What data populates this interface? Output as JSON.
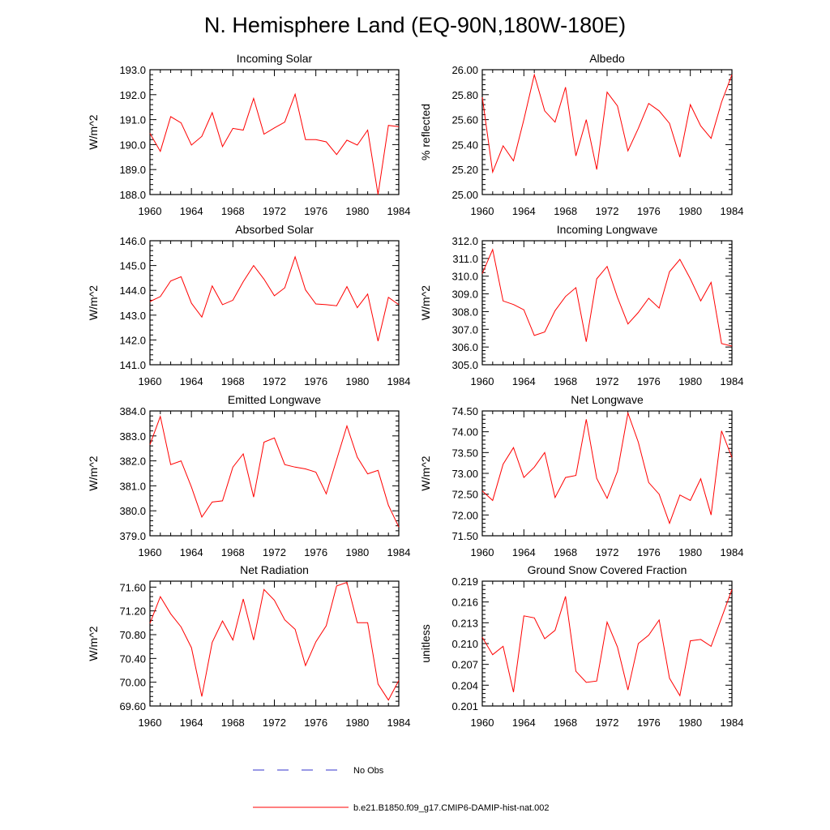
{
  "figure": {
    "title": "N. Hemisphere Land (EQ-90N,180W-180E)"
  },
  "legend": {
    "obs_label": "No Obs",
    "obs_color": "#3333cc",
    "model_label": "b.e21.B1850.f09_g17.CMIP6-DAMIP-hist-nat.002",
    "model_color": "#ff0000"
  },
  "chart_data": [
    {
      "type": "line",
      "title": "Incoming Solar",
      "ylabel": "W/m^2",
      "xlim": [
        1960,
        1984
      ],
      "ylim": [
        188.0,
        193.0
      ],
      "xticks": [
        "1960",
        "1964",
        "1968",
        "1972",
        "1976",
        "1980",
        "1984"
      ],
      "yticks": [
        "188.0",
        "189.0",
        "190.0",
        "191.0",
        "192.0",
        "193.0"
      ],
      "x": [
        1960,
        1961,
        1962,
        1963,
        1964,
        1965,
        1966,
        1967,
        1968,
        1969,
        1970,
        1971,
        1972,
        1973,
        1974,
        1975,
        1976,
        1977,
        1978,
        1979,
        1980,
        1981,
        1982,
        1983,
        1984
      ],
      "series": [
        {
          "name": "b.e21.B1850.f09_g17.CMIP6-DAMIP-hist-nat.002",
          "values": [
            190.45,
            189.73,
            191.12,
            190.87,
            189.98,
            190.33,
            191.28,
            189.92,
            190.65,
            190.58,
            191.85,
            190.42,
            190.67,
            190.9,
            192.02,
            190.2,
            190.2,
            190.11,
            189.6,
            190.18,
            189.98,
            190.58,
            188.0,
            190.77,
            190.72
          ]
        }
      ]
    },
    {
      "type": "line",
      "title": "Albedo",
      "ylabel": "% reflected",
      "xlim": [
        1960,
        1984
      ],
      "ylim": [
        25.0,
        26.0
      ],
      "xticks": [
        "1960",
        "1964",
        "1968",
        "1972",
        "1976",
        "1980",
        "1984"
      ],
      "yticks": [
        "25.00",
        "25.20",
        "25.40",
        "25.60",
        "25.80",
        "26.00"
      ],
      "x": [
        1960,
        1961,
        1962,
        1963,
        1964,
        1965,
        1966,
        1967,
        1968,
        1969,
        1970,
        1971,
        1972,
        1973,
        1974,
        1975,
        1976,
        1977,
        1978,
        1979,
        1980,
        1981,
        1982,
        1983,
        1984
      ],
      "series": [
        {
          "name": "b.e21.B1850.f09_g17.CMIP6-DAMIP-hist-nat.002",
          "values": [
            25.78,
            25.18,
            25.39,
            25.27,
            25.6,
            25.96,
            25.67,
            25.58,
            25.86,
            25.31,
            25.6,
            25.2,
            25.82,
            25.71,
            25.35,
            25.53,
            25.73,
            25.67,
            25.57,
            25.3,
            25.72,
            25.55,
            25.45,
            25.74,
            25.96
          ]
        }
      ]
    },
    {
      "type": "line",
      "title": "Absorbed Solar",
      "ylabel": "W/m^2",
      "xlim": [
        1960,
        1984
      ],
      "ylim": [
        141.0,
        146.0
      ],
      "xticks": [
        "1960",
        "1964",
        "1968",
        "1972",
        "1976",
        "1980",
        "1984"
      ],
      "yticks": [
        "141.0",
        "142.0",
        "143.0",
        "144.0",
        "145.0",
        "146.0"
      ],
      "x": [
        1960,
        1961,
        1962,
        1963,
        1964,
        1965,
        1966,
        1967,
        1968,
        1969,
        1970,
        1971,
        1972,
        1973,
        1974,
        1975,
        1976,
        1977,
        1978,
        1979,
        1980,
        1981,
        1982,
        1983,
        1984
      ],
      "series": [
        {
          "name": "b.e21.B1850.f09_g17.CMIP6-DAMIP-hist-nat.002",
          "values": [
            143.55,
            143.75,
            144.38,
            144.55,
            143.48,
            142.92,
            144.18,
            143.42,
            143.6,
            144.35,
            145.0,
            144.45,
            143.78,
            144.1,
            145.35,
            144.02,
            143.45,
            143.42,
            143.38,
            144.15,
            143.3,
            143.85,
            141.95,
            143.72,
            143.42
          ]
        }
      ]
    },
    {
      "type": "line",
      "title": "Incoming Longwave",
      "ylabel": "W/m^2",
      "xlim": [
        1960,
        1984
      ],
      "ylim": [
        305.0,
        312.0
      ],
      "xticks": [
        "1960",
        "1964",
        "1968",
        "1972",
        "1976",
        "1980",
        "1984"
      ],
      "yticks": [
        "305.0",
        "306.0",
        "307.0",
        "308.0",
        "309.0",
        "310.0",
        "311.0",
        "312.0"
      ],
      "x": [
        1960,
        1961,
        1962,
        1963,
        1964,
        1965,
        1966,
        1967,
        1968,
        1969,
        1970,
        1971,
        1972,
        1973,
        1974,
        1975,
        1976,
        1977,
        1978,
        1979,
        1980,
        1981,
        1982,
        1983,
        1984
      ],
      "series": [
        {
          "name": "b.e21.B1850.f09_g17.CMIP6-DAMIP-hist-nat.002",
          "values": [
            310.15,
            311.5,
            308.6,
            308.4,
            308.1,
            306.65,
            306.85,
            308.05,
            308.85,
            309.35,
            306.3,
            309.85,
            310.55,
            308.8,
            307.3,
            307.95,
            308.75,
            308.2,
            310.25,
            310.95,
            309.85,
            308.6,
            309.65,
            306.2,
            306.05
          ]
        }
      ]
    },
    {
      "type": "line",
      "title": "Emitted Longwave",
      "ylabel": "W/m^2",
      "xlim": [
        1960,
        1984
      ],
      "ylim": [
        379.0,
        384.0
      ],
      "xticks": [
        "1960",
        "1964",
        "1968",
        "1972",
        "1976",
        "1980",
        "1984"
      ],
      "yticks": [
        "379.0",
        "380.0",
        "381.0",
        "382.0",
        "383.0",
        "384.0"
      ],
      "x": [
        1960,
        1961,
        1962,
        1963,
        1964,
        1965,
        1966,
        1967,
        1968,
        1969,
        1970,
        1971,
        1972,
        1973,
        1974,
        1975,
        1976,
        1977,
        1978,
        1979,
        1980,
        1981,
        1982,
        1983,
        1984
      ],
      "series": [
        {
          "name": "b.e21.B1850.f09_g17.CMIP6-DAMIP-hist-nat.002",
          "values": [
            382.65,
            383.78,
            381.85,
            382.0,
            380.95,
            379.75,
            380.35,
            380.4,
            381.75,
            382.28,
            380.55,
            382.75,
            382.92,
            381.85,
            381.75,
            381.68,
            381.55,
            380.68,
            382.05,
            383.4,
            382.15,
            381.48,
            381.62,
            380.22,
            379.35
          ]
        }
      ]
    },
    {
      "type": "line",
      "title": "Net Longwave",
      "ylabel": "W/m^2",
      "xlim": [
        1960,
        1984
      ],
      "ylim": [
        71.5,
        74.5
      ],
      "xticks": [
        "1960",
        "1964",
        "1968",
        "1972",
        "1976",
        "1980",
        "1984"
      ],
      "yticks": [
        "71.50",
        "72.00",
        "72.50",
        "73.00",
        "73.50",
        "74.00",
        "74.50"
      ],
      "x": [
        1960,
        1961,
        1962,
        1963,
        1964,
        1965,
        1966,
        1967,
        1968,
        1969,
        1970,
        1971,
        1972,
        1973,
        1974,
        1975,
        1976,
        1977,
        1978,
        1979,
        1980,
        1981,
        1982,
        1983,
        1984
      ],
      "series": [
        {
          "name": "b.e21.B1850.f09_g17.CMIP6-DAMIP-hist-nat.002",
          "values": [
            72.58,
            72.35,
            73.22,
            73.62,
            72.9,
            73.15,
            73.5,
            72.42,
            72.9,
            72.95,
            74.3,
            72.88,
            72.4,
            73.05,
            74.45,
            73.75,
            72.78,
            72.5,
            71.8,
            72.48,
            72.35,
            72.87,
            72.0,
            74.02,
            73.38
          ]
        }
      ]
    },
    {
      "type": "line",
      "title": "Net Radiation",
      "ylabel": "W/m^2",
      "xlim": [
        1960,
        1984
      ],
      "ylim": [
        69.6,
        71.7
      ],
      "xticks": [
        "1960",
        "1964",
        "1968",
        "1972",
        "1976",
        "1980",
        "1984"
      ],
      "yticks": [
        "69.60",
        "70.00",
        "70.40",
        "70.80",
        "71.20",
        "71.60"
      ],
      "x": [
        1960,
        1961,
        1962,
        1963,
        1964,
        1965,
        1966,
        1967,
        1968,
        1969,
        1970,
        1971,
        1972,
        1973,
        1974,
        1975,
        1976,
        1977,
        1978,
        1979,
        1980,
        1981,
        1982,
        1983,
        1984
      ],
      "series": [
        {
          "name": "b.e21.B1850.f09_g17.CMIP6-DAMIP-hist-nat.002",
          "values": [
            70.99,
            71.44,
            71.15,
            70.93,
            70.58,
            69.76,
            70.67,
            71.03,
            70.71,
            71.4,
            70.71,
            71.56,
            71.38,
            71.05,
            70.89,
            70.28,
            70.68,
            70.95,
            71.62,
            71.68,
            71.0,
            71.0,
            69.97,
            69.7,
            70.03
          ]
        }
      ]
    },
    {
      "type": "line",
      "title": "Ground Snow Covered Fraction",
      "ylabel": "unitless",
      "xlim": [
        1960,
        1984
      ],
      "ylim": [
        0.201,
        0.219
      ],
      "xticks": [
        "1960",
        "1964",
        "1968",
        "1972",
        "1976",
        "1980",
        "1984"
      ],
      "yticks": [
        "0.201",
        "0.204",
        "0.207",
        "0.210",
        "0.213",
        "0.216",
        "0.219"
      ],
      "x": [
        1960,
        1961,
        1962,
        1963,
        1964,
        1965,
        1966,
        1967,
        1968,
        1969,
        1970,
        1971,
        1972,
        1973,
        1974,
        1975,
        1976,
        1977,
        1978,
        1979,
        1980,
        1981,
        1982,
        1983,
        1984
      ],
      "series": [
        {
          "name": "b.e21.B1850.f09_g17.CMIP6-DAMIP-hist-nat.002",
          "values": [
            0.2109,
            0.2084,
            0.2096,
            0.203,
            0.214,
            0.2137,
            0.2107,
            0.2119,
            0.2168,
            0.206,
            0.2044,
            0.2046,
            0.2131,
            0.2095,
            0.2033,
            0.21,
            0.2112,
            0.2134,
            0.205,
            0.2025,
            0.2104,
            0.2106,
            0.2096,
            0.2137,
            0.2178
          ]
        }
      ]
    }
  ]
}
